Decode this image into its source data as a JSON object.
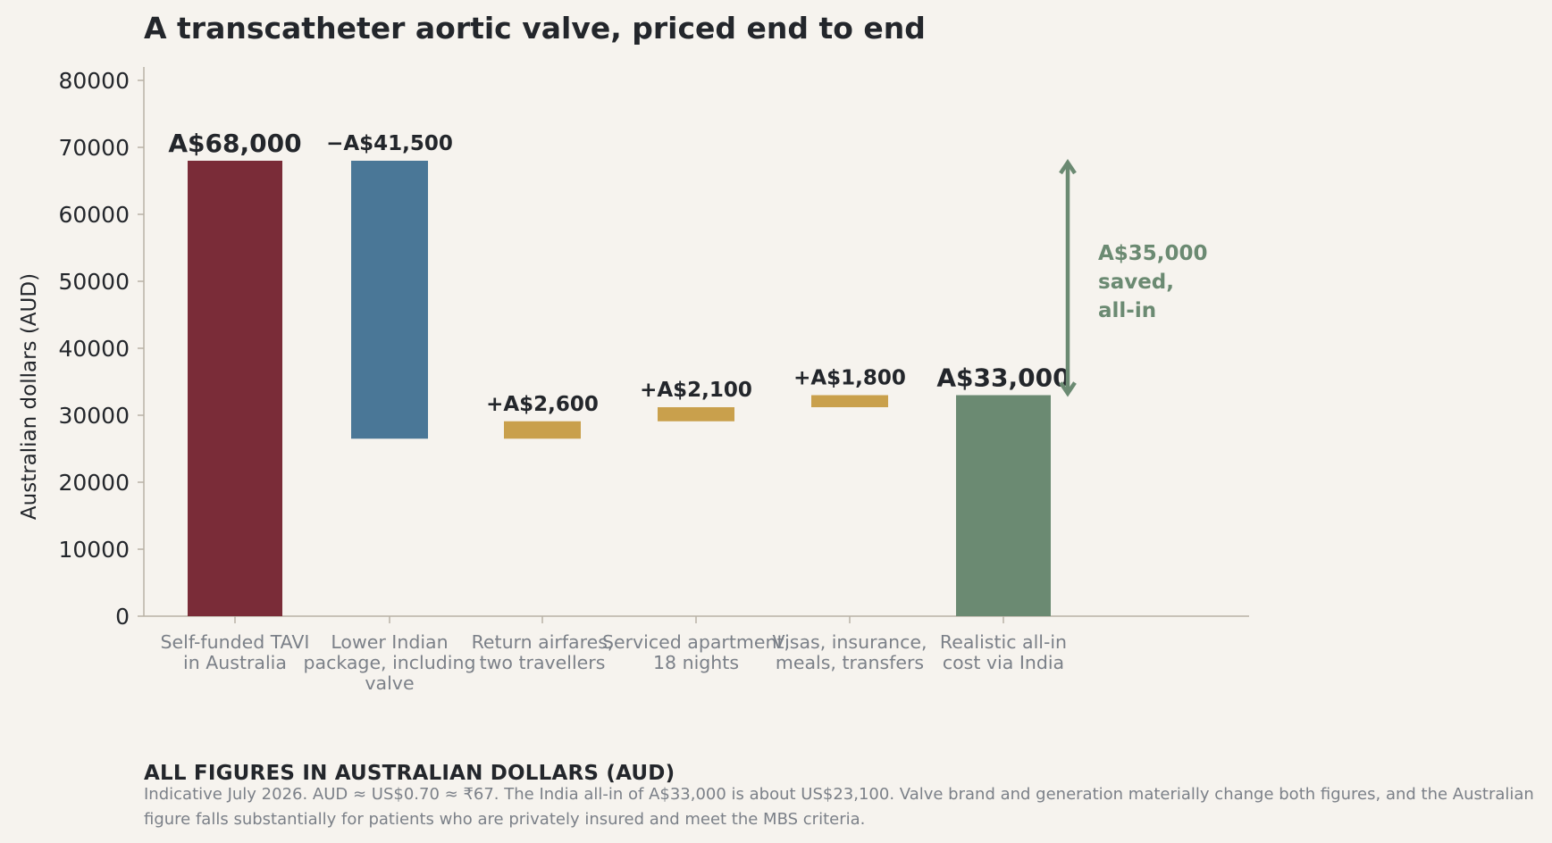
{
  "colors": {
    "background": "#f6f3ee",
    "text": "#23262b",
    "muted": "#7b8088",
    "australia": "#7a2c38",
    "reduction": "#4a7797",
    "addition": "#c9a04c",
    "total": "#6b8a72",
    "axis": "#b8b2a6"
  },
  "chart_data": {
    "type": "waterfall",
    "title": "A transcatheter aortic valve, priced end to end",
    "ylabel": "Australian dollars (AUD)",
    "ylim": [
      0,
      82000
    ],
    "yticks": [
      0,
      10000,
      20000,
      30000,
      40000,
      50000,
      60000,
      70000,
      80000
    ],
    "grid": false,
    "steps": [
      {
        "category": [
          "Self-funded TAVI",
          "in Australia"
        ],
        "kind": "total",
        "start": 0,
        "end": 68000,
        "label": "A$68,000"
      },
      {
        "category": [
          "Lower Indian",
          "package, including",
          "valve"
        ],
        "kind": "decrease",
        "start": 68000,
        "end": 26500,
        "label": "−A$41,500"
      },
      {
        "category": [
          "Return airfares,",
          "two travellers"
        ],
        "kind": "increase",
        "start": 26500,
        "end": 29100,
        "label": "+A$2,600"
      },
      {
        "category": [
          "Serviced apartment,",
          "18 nights"
        ],
        "kind": "increase",
        "start": 29100,
        "end": 31200,
        "label": "+A$2,100"
      },
      {
        "category": [
          "Visas, insurance,",
          "meals, transfers"
        ],
        "kind": "increase",
        "start": 31200,
        "end": 33000,
        "label": "+A$1,800"
      },
      {
        "category": [
          "Realistic all-in",
          "cost via India"
        ],
        "kind": "total",
        "start": 0,
        "end": 33000,
        "label": "A$33,000"
      }
    ],
    "annotation": {
      "from": 33000,
      "to": 68000,
      "text": "A$35,000\nsaved,\nall-in"
    }
  },
  "footer": {
    "heading": "ALL FIGURES IN AUSTRALIAN DOLLARS (AUD)",
    "note": "Indicative July 2026. AUD ≈ US$0.70 ≈ ₹67. The India all-in of A$33,000 is about US$23,100. Valve brand and generation materially change both figures, and the Australian figure falls substantially for patients who are privately insured and meet the MBS criteria."
  }
}
